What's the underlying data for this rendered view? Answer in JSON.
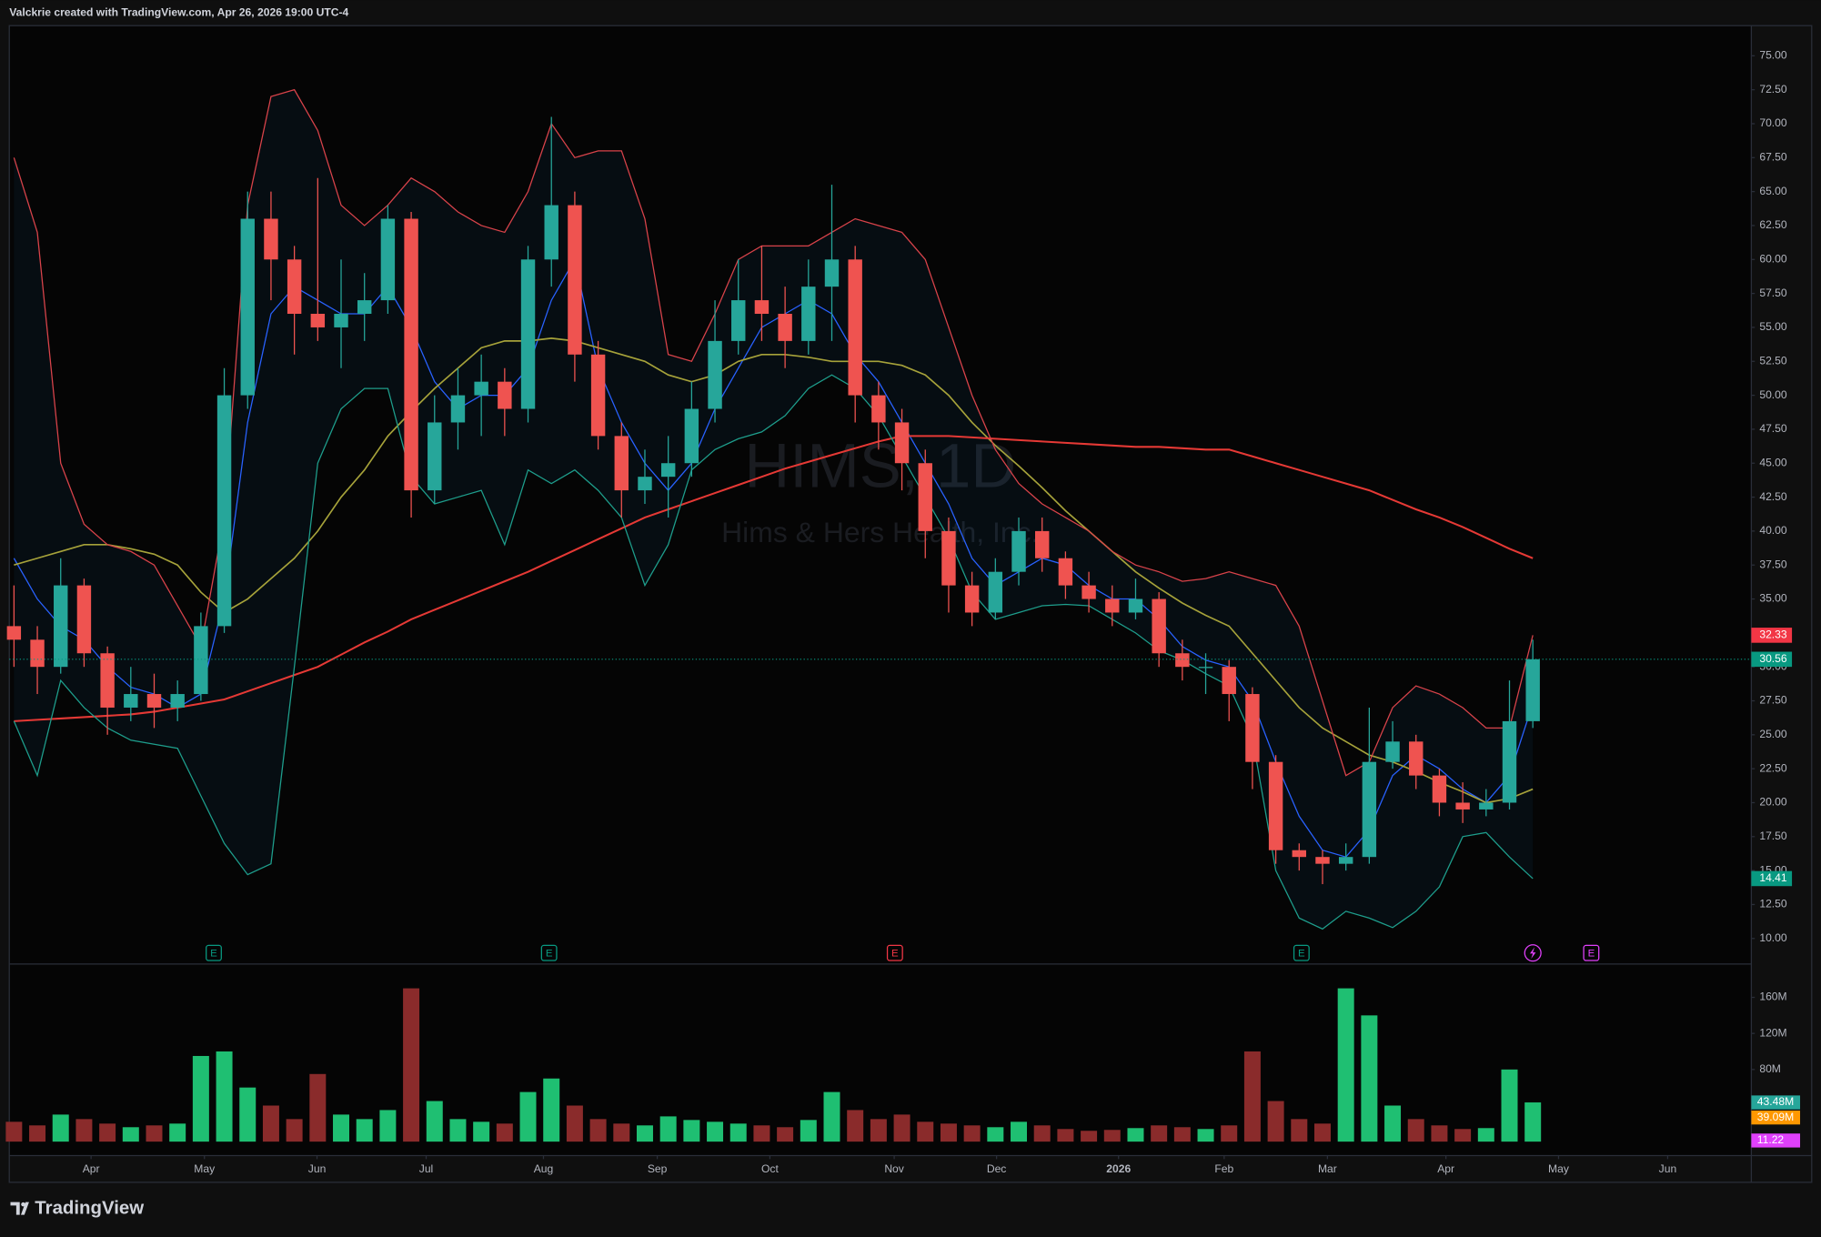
{
  "header": "Valckrie created with TradingView.com, Apr 26, 2026 19:00 UTC-4",
  "footer": "TradingView",
  "chart_data": {
    "type": "candlestick",
    "watermark": {
      "symbol": "HIMS, 1D",
      "name": "Hims & Hers Health, Inc."
    },
    "up_color": "#26a69a",
    "down_color": "#ef5350",
    "xlim": [
      -0.2,
      74.35
    ],
    "xticks": [
      {
        "value": 3.3,
        "label": "Apr"
      },
      {
        "value": 8.15,
        "label": "May"
      },
      {
        "value": 12.97,
        "label": "Jun"
      },
      {
        "value": 17.64,
        "label": "Jul"
      },
      {
        "value": 22.66,
        "label": "Aug"
      },
      {
        "value": 27.53,
        "label": "Sep"
      },
      {
        "value": 32.35,
        "label": "Oct"
      },
      {
        "value": 37.67,
        "label": "Nov"
      },
      {
        "value": 42.05,
        "label": "Dec"
      },
      {
        "value": 47.27,
        "label": "2026"
      },
      {
        "value": 51.79,
        "label": "Feb"
      },
      {
        "value": 56.21,
        "label": "Mar"
      },
      {
        "value": 61.28,
        "label": "Apr"
      },
      {
        "value": 66.1,
        "label": "May"
      },
      {
        "value": 70.77,
        "label": "Jun"
      }
    ],
    "ylim": [
      8.12,
      77.22
    ],
    "yticks": [
      {
        "value": 10,
        "label": "10.00"
      },
      {
        "value": 12.5,
        "label": "12.50"
      },
      {
        "value": 15,
        "label": "15.00"
      },
      {
        "value": 17.5,
        "label": "17.50"
      },
      {
        "value": 20,
        "label": "20.00"
      },
      {
        "value": 22.5,
        "label": "22.50"
      },
      {
        "value": 25,
        "label": "25.00"
      },
      {
        "value": 27.5,
        "label": "27.50"
      },
      {
        "value": 30,
        "label": "30.00"
      },
      {
        "value": 32.5,
        "label": "32.50"
      },
      {
        "value": 35,
        "label": "35.00"
      },
      {
        "value": 37.5,
        "label": "37.50"
      },
      {
        "value": 40,
        "label": "40.00"
      },
      {
        "value": 42.5,
        "label": "42.50"
      },
      {
        "value": 45,
        "label": "45.00"
      },
      {
        "value": 47.5,
        "label": "47.50"
      },
      {
        "value": 50,
        "label": "50.00"
      },
      {
        "value": 52.5,
        "label": "52.50"
      },
      {
        "value": 55,
        "label": "55.00"
      },
      {
        "value": 57.5,
        "label": "57.50"
      },
      {
        "value": 60,
        "label": "60.00"
      },
      {
        "value": 62.5,
        "label": "62.50"
      },
      {
        "value": 65,
        "label": "65.00"
      },
      {
        "value": 67.5,
        "label": "67.50"
      },
      {
        "value": 70,
        "label": "70.00"
      },
      {
        "value": 72.5,
        "label": "72.50"
      },
      {
        "value": 75,
        "label": "75.00"
      }
    ],
    "open": [
      33,
      32,
      30,
      36,
      31,
      27,
      28,
      27,
      28,
      33,
      50,
      63,
      60,
      56,
      55,
      56,
      57,
      63,
      43,
      48,
      50,
      51,
      49,
      60,
      64,
      53,
      47,
      43,
      44,
      45,
      49,
      54,
      57,
      56,
      54,
      58,
      60,
      50,
      48,
      45,
      40,
      36,
      34,
      37,
      40,
      38,
      36,
      35,
      34,
      35,
      31,
      30,
      30,
      28,
      23,
      16.5,
      16,
      15.5,
      16,
      23,
      24.5,
      22,
      20,
      19.5,
      20,
      26
    ],
    "high": [
      36,
      33,
      38,
      36.5,
      31.5,
      30,
      29.5,
      29,
      34,
      52,
      65,
      65,
      61,
      66,
      60,
      59,
      64,
      63.5,
      50,
      52,
      53,
      52,
      61,
      70.5,
      65,
      54,
      48,
      46,
      47,
      51,
      57,
      60,
      61,
      58,
      60,
      65.5,
      61,
      51,
      49,
      46,
      41,
      37,
      38,
      41,
      41,
      38.5,
      37,
      36,
      36.5,
      35.5,
      32,
      31,
      30.5,
      28.5,
      23.5,
      17,
      16.5,
      17,
      27,
      26,
      25,
      22.5,
      21.5,
      21,
      29,
      32
    ],
    "low": [
      30,
      28,
      29.5,
      30,
      25,
      26,
      25.5,
      26,
      27.5,
      32.5,
      49,
      57,
      53,
      54,
      52,
      54,
      56,
      41,
      42,
      46,
      47,
      47,
      48,
      58,
      51,
      46,
      41,
      42,
      41,
      44,
      48,
      53,
      54,
      52,
      53,
      54,
      48,
      46,
      43,
      38,
      34,
      33,
      33.5,
      36,
      37,
      35,
      34,
      33,
      33.5,
      30,
      29,
      28,
      26,
      21,
      15.5,
      15,
      14,
      15,
      15.5,
      22.5,
      21,
      19,
      18.5,
      19,
      19.5,
      25.5
    ],
    "close": [
      32,
      30,
      36,
      31,
      27,
      28,
      27,
      28,
      33,
      50,
      63,
      60,
      56,
      55,
      56,
      57,
      63,
      43,
      48,
      50,
      51,
      49,
      60,
      64,
      53,
      47,
      43,
      44,
      45,
      49,
      54,
      57,
      56,
      54,
      58,
      60,
      50,
      48,
      45,
      40,
      36,
      34,
      37,
      40,
      38,
      36,
      35,
      34,
      35,
      31,
      30,
      30,
      28,
      23,
      16.5,
      16,
      15.5,
      16,
      23,
      24.5,
      22,
      20,
      19.5,
      20,
      26,
      30.56
    ],
    "lines": [
      {
        "color": "#2962ff",
        "width": 1,
        "values": [
          38,
          35,
          33,
          32,
          30,
          28.5,
          28,
          27,
          28,
          35,
          48,
          56,
          58,
          57,
          56,
          56,
          58,
          55,
          51,
          49,
          50,
          50,
          52,
          57,
          60,
          52,
          48,
          45,
          43,
          45,
          49,
          52,
          55,
          56,
          57,
          56,
          53,
          51,
          48,
          45,
          42,
          38,
          36,
          37,
          38,
          37.5,
          36,
          35,
          35,
          33.5,
          31.5,
          30.5,
          30,
          27.5,
          23,
          19,
          16.5,
          16,
          18,
          22,
          23.5,
          22.5,
          21,
          20,
          22,
          27.3
        ]
      },
      {
        "color": "#a6a23a",
        "width": 1.3,
        "values": [
          37.5,
          38,
          38.5,
          39,
          39,
          38.7,
          38.3,
          37.5,
          35.5,
          34,
          35,
          36.5,
          38,
          40,
          42.5,
          44.5,
          47,
          48.8,
          50.5,
          52,
          53.5,
          54,
          54,
          54.2,
          54,
          53.5,
          53,
          52.5,
          51.5,
          51,
          51.5,
          52.5,
          53,
          53,
          52.8,
          52.5,
          52.5,
          52.5,
          52.2,
          51.5,
          50,
          48,
          46.3,
          44.8,
          43.2,
          41.5,
          40,
          38.5,
          37,
          35.8,
          34.7,
          33.8,
          33,
          31,
          29,
          27,
          25.5,
          24.5,
          23.5,
          23,
          22.3,
          21.5,
          20.8,
          20,
          20.3,
          21
        ]
      },
      {
        "color": "#e53935",
        "width": 1.6,
        "values": [
          26,
          26.1,
          26.2,
          26.3,
          26.4,
          26.5,
          26.7,
          27,
          27.3,
          27.6,
          28.2,
          28.8,
          29.4,
          30,
          30.9,
          31.8,
          32.6,
          33.5,
          34.2,
          34.9,
          35.6,
          36.3,
          37,
          37.8,
          38.6,
          39.4,
          40.2,
          41,
          41.6,
          42.2,
          42.8,
          43.4,
          44,
          44.6,
          45.1,
          45.6,
          46.1,
          46.6,
          47,
          47,
          47,
          46.9,
          46.8,
          46.7,
          46.6,
          46.5,
          46.4,
          46.3,
          46.2,
          46.2,
          46.1,
          46,
          46,
          45.5,
          45,
          44.5,
          44,
          43.5,
          43,
          42.3,
          41.6,
          41,
          40.3,
          39.5,
          38.7,
          38
        ]
      },
      {
        "color": "#d9434a",
        "width": 1,
        "values": [
          67.5,
          62,
          45,
          40.5,
          39,
          38.5,
          37.5,
          34.5,
          31.5,
          41,
          64,
          72,
          72.5,
          69.5,
          64,
          62.5,
          64,
          66,
          65,
          63.5,
          62.5,
          62,
          65,
          70,
          67.5,
          68,
          68,
          63,
          53,
          52.5,
          56,
          60,
          61,
          61,
          61,
          62,
          63,
          62.5,
          62,
          60,
          55,
          50,
          46,
          43.5,
          42,
          41,
          40,
          38.5,
          37.5,
          37,
          36.3,
          36.5,
          37,
          36.5,
          36,
          33,
          27.5,
          22,
          23,
          27,
          28.6,
          28,
          27,
          25.5,
          25.5,
          32.33
        ]
      },
      {
        "color": "#1e9e8c",
        "width": 1,
        "values": [
          26,
          22,
          29,
          27,
          25.5,
          24.6,
          24.3,
          24,
          20.5,
          17,
          14.7,
          15.5,
          30,
          45,
          49,
          50.5,
          50.5,
          44,
          42,
          42.5,
          43,
          39,
          44.5,
          43.5,
          44.5,
          43,
          41,
          36,
          39,
          44.5,
          46,
          46.8,
          47.3,
          48.5,
          50.5,
          51.5,
          50.5,
          48.5,
          45.5,
          42.5,
          39.5,
          35.5,
          33.5,
          34,
          34.5,
          34.6,
          34.5,
          33.5,
          32.5,
          31.2,
          30.5,
          29.5,
          28.6,
          24.8,
          15,
          11.5,
          10.7,
          12,
          11.5,
          10.8,
          12,
          13.8,
          17.5,
          17.8,
          16,
          14.41
        ]
      }
    ],
    "band_fill": "#2196f3",
    "price_markers": [
      {
        "value": 32.33,
        "color": "#f23645"
      },
      {
        "value": 30.56,
        "color": "#089981",
        "dashed_line": true
      },
      {
        "value": 14.41,
        "color": "#089981"
      }
    ],
    "earnings": [
      {
        "label": "E",
        "at": 8.55,
        "color": "#089981"
      },
      {
        "label": "E",
        "at": 22.9,
        "color": "#089981"
      },
      {
        "label": "E",
        "at": 37.7,
        "color": "#f23645"
      },
      {
        "label": "E",
        "at": 55.1,
        "color": "#089981"
      },
      {
        "label": "E",
        "at": 67.5,
        "color": "#e040fb"
      }
    ],
    "dividend_at": 65.0,
    "volume": {
      "values": [
        22,
        18,
        30,
        25,
        20,
        16,
        18,
        20,
        95,
        100,
        60,
        40,
        25,
        75,
        30,
        25,
        35,
        170,
        45,
        25,
        22,
        20,
        55,
        70,
        40,
        25,
        20,
        18,
        28,
        24,
        22,
        20,
        18,
        16,
        24,
        55,
        35,
        25,
        30,
        22,
        20,
        18,
        16,
        22,
        18,
        14,
        12,
        13,
        15,
        18,
        16,
        14,
        18,
        100,
        45,
        25,
        20,
        170,
        140,
        40,
        25,
        18,
        14,
        15,
        80,
        43.48
      ],
      "value_labels_last": "43.48M",
      "ylim": [
        -15.5,
        197
      ],
      "yticks": [
        {
          "value": 80,
          "label": "80M"
        },
        {
          "value": 120,
          "label": "120M"
        },
        {
          "value": 160,
          "label": "160M"
        }
      ],
      "up_color": "#1fbf72",
      "down_color": "#8a2b2b",
      "markers": [
        {
          "value": 39.09,
          "label": "39.09M",
          "color": "#ff9800"
        },
        {
          "value": 11.22,
          "color": "#e040fb"
        }
      ]
    }
  }
}
